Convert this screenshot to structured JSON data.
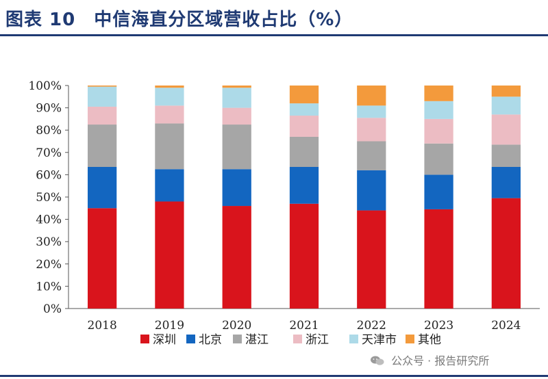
{
  "header": {
    "title": "图表 10　中信海直分区域营收占比（%）"
  },
  "watermark": {
    "text": "公众号 · 报告研究所",
    "icon": "wechat-icon"
  },
  "chart_data": {
    "type": "bar",
    "stacked": true,
    "title": "中信海直分区域营收占比（%）",
    "xlabel": "",
    "ylabel": "",
    "ylim": [
      0,
      100
    ],
    "yticks": [
      "0%",
      "10%",
      "20%",
      "30%",
      "40%",
      "50%",
      "60%",
      "70%",
      "80%",
      "90%",
      "100%"
    ],
    "categories": [
      "2018",
      "2019",
      "2020",
      "2021",
      "2022",
      "2023",
      "2024"
    ],
    "legend_position": "bottom",
    "series": [
      {
        "name": "深圳",
        "color": "#d9141c",
        "values": [
          45,
          48,
          46,
          47,
          44,
          44.5,
          49.5
        ]
      },
      {
        "name": "北京",
        "color": "#1366c0",
        "values": [
          18.5,
          14.5,
          16.5,
          16.5,
          18,
          15.5,
          14
        ]
      },
      {
        "name": "湛江",
        "color": "#a6a6a6",
        "values": [
          19,
          20.5,
          20,
          13.5,
          13,
          14,
          10
        ]
      },
      {
        "name": "浙江",
        "color": "#ecbcc3",
        "values": [
          8,
          8,
          7.5,
          9.5,
          10.5,
          11,
          13.5
        ]
      },
      {
        "name": "天津市",
        "color": "#addae8",
        "values": [
          9,
          8,
          9,
          5.5,
          5.5,
          8,
          8
        ]
      },
      {
        "name": "其他",
        "color": "#f39a3c",
        "values": [
          0.5,
          1,
          1,
          8,
          9,
          7,
          5
        ]
      }
    ]
  }
}
